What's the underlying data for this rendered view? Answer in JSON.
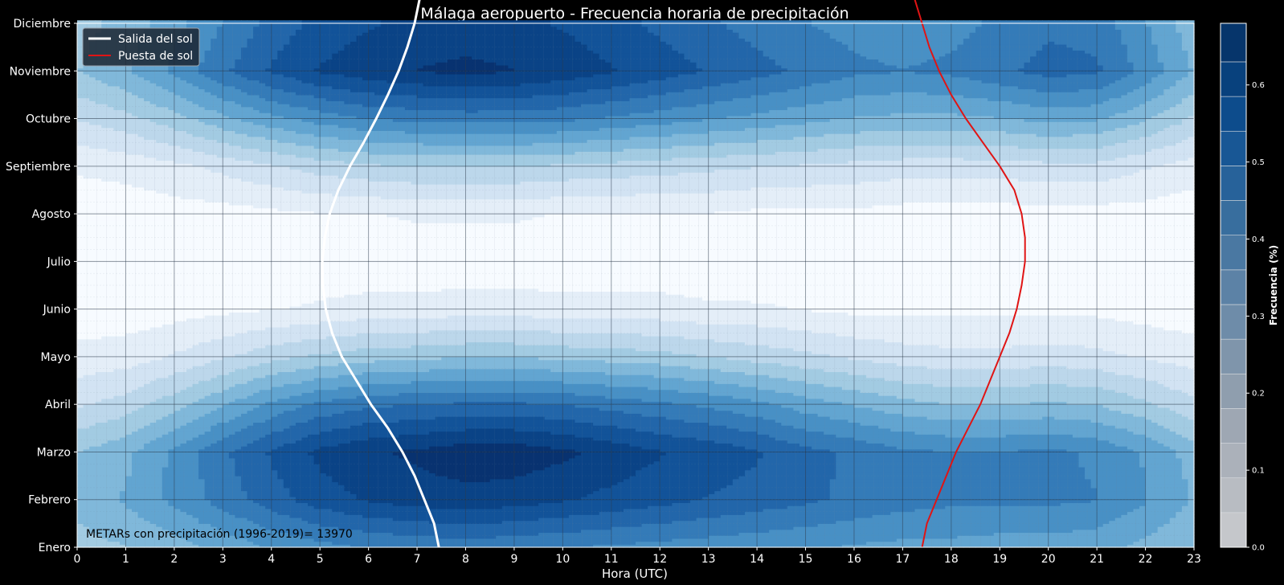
{
  "chart_data": {
    "type": "heatmap",
    "title": "Málaga aeropuerto - Frecuencia horaria de precipitación",
    "xlabel": "Hora (UTC)",
    "ylabel": "",
    "x_ticks": [
      "0",
      "1",
      "2",
      "3",
      "4",
      "5",
      "6",
      "7",
      "8",
      "9",
      "10",
      "11",
      "12",
      "13",
      "14",
      "15",
      "16",
      "17",
      "18",
      "19",
      "20",
      "21",
      "22",
      "23"
    ],
    "xlim": [
      0,
      23
    ],
    "months": [
      "Enero",
      "Febrero",
      "Marzo",
      "Abril",
      "Mayo",
      "Junio",
      "Julio",
      "Agosto",
      "Septiembre",
      "Octubre",
      "Noviembre",
      "Diciembre"
    ],
    "grid": true,
    "colorbar": {
      "label": "Frecuencia  (%)",
      "ticks": [
        "0.0",
        "0.1",
        "0.2",
        "0.3",
        "0.4",
        "0.5",
        "0.6"
      ],
      "range": [
        0,
        0.68
      ],
      "levels": [
        0,
        0.045,
        0.09,
        0.135,
        0.18,
        0.225,
        0.27,
        0.315,
        0.36,
        0.405,
        0.45,
        0.495,
        0.54,
        0.585,
        0.63,
        0.68
      ],
      "colors": [
        "#c5c7cb",
        "#b8bcc2",
        "#abb1ba",
        "#9ea7b3",
        "#8f9eae",
        "#7f95ab",
        "#6e8ca9",
        "#5c82a6",
        "#4a78a2",
        "#386e9e",
        "#27629a",
        "#185795",
        "#0d4c8c",
        "#08417d",
        "#06356b",
        "#052a5a"
      ]
    },
    "heatmap_colors": [
      "#f7fbff",
      "#e4eef8",
      "#d2e3f3",
      "#bcd7eb",
      "#a2cbe2",
      "#80b8da",
      "#62a5d1",
      "#4890c5",
      "#347bb8",
      "#2266aa",
      "#125399",
      "#0a4386",
      "#083270"
    ],
    "frequency_grid": {
      "hours": [
        0,
        1,
        2,
        3,
        4,
        5,
        6,
        7,
        8,
        9,
        10,
        11,
        12,
        13,
        14,
        15,
        16,
        17,
        18,
        19,
        20,
        21,
        22,
        23
      ],
      "months": [
        "Enero",
        "Febrero",
        "Marzo",
        "Abril",
        "Mayo",
        "Junio",
        "Julio",
        "Agosto",
        "Septiembre",
        "Octubre",
        "Noviembre",
        "Diciembre"
      ],
      "values": [
        [
          0.24,
          0.26,
          0.29,
          0.33,
          0.37,
          0.4,
          0.42,
          0.43,
          0.44,
          0.43,
          0.42,
          0.41,
          0.4,
          0.39,
          0.38,
          0.37,
          0.36,
          0.35,
          0.35,
          0.34,
          0.34,
          0.33,
          0.3,
          0.26
        ],
        [
          0.28,
          0.32,
          0.38,
          0.44,
          0.5,
          0.55,
          0.58,
          0.6,
          0.61,
          0.6,
          0.58,
          0.56,
          0.54,
          0.52,
          0.5,
          0.48,
          0.46,
          0.44,
          0.43,
          0.43,
          0.43,
          0.42,
          0.37,
          0.31
        ],
        [
          0.26,
          0.3,
          0.38,
          0.46,
          0.53,
          0.59,
          0.62,
          0.64,
          0.66,
          0.66,
          0.64,
          0.61,
          0.58,
          0.56,
          0.53,
          0.49,
          0.46,
          0.43,
          0.42,
          0.42,
          0.43,
          0.41,
          0.36,
          0.29
        ],
        [
          0.15,
          0.18,
          0.24,
          0.31,
          0.38,
          0.43,
          0.46,
          0.47,
          0.48,
          0.48,
          0.47,
          0.45,
          0.43,
          0.41,
          0.38,
          0.34,
          0.31,
          0.28,
          0.26,
          0.26,
          0.27,
          0.26,
          0.22,
          0.17
        ],
        [
          0.07,
          0.08,
          0.11,
          0.15,
          0.19,
          0.22,
          0.24,
          0.25,
          0.26,
          0.26,
          0.25,
          0.24,
          0.23,
          0.21,
          0.19,
          0.17,
          0.15,
          0.13,
          0.12,
          0.12,
          0.13,
          0.12,
          0.1,
          0.08
        ],
        [
          0.02,
          0.02,
          0.03,
          0.04,
          0.05,
          0.06,
          0.07,
          0.07,
          0.08,
          0.08,
          0.07,
          0.07,
          0.07,
          0.06,
          0.06,
          0.05,
          0.04,
          0.04,
          0.04,
          0.04,
          0.04,
          0.04,
          0.03,
          0.02
        ],
        [
          0.01,
          0.01,
          0.01,
          0.01,
          0.01,
          0.02,
          0.02,
          0.02,
          0.02,
          0.02,
          0.02,
          0.02,
          0.02,
          0.02,
          0.01,
          0.01,
          0.01,
          0.01,
          0.01,
          0.01,
          0.01,
          0.01,
          0.01,
          0.01
        ],
        [
          0.02,
          0.02,
          0.03,
          0.03,
          0.04,
          0.05,
          0.05,
          0.06,
          0.06,
          0.06,
          0.05,
          0.05,
          0.05,
          0.05,
          0.04,
          0.04,
          0.04,
          0.03,
          0.03,
          0.03,
          0.03,
          0.03,
          0.03,
          0.02
        ],
        [
          0.06,
          0.07,
          0.09,
          0.12,
          0.15,
          0.18,
          0.2,
          0.21,
          0.21,
          0.21,
          0.2,
          0.19,
          0.18,
          0.17,
          0.16,
          0.15,
          0.14,
          0.13,
          0.13,
          0.13,
          0.14,
          0.14,
          0.11,
          0.08
        ],
        [
          0.16,
          0.19,
          0.24,
          0.3,
          0.35,
          0.39,
          0.42,
          0.43,
          0.44,
          0.44,
          0.43,
          0.41,
          0.39,
          0.37,
          0.35,
          0.33,
          0.31,
          0.3,
          0.3,
          0.31,
          0.33,
          0.32,
          0.27,
          0.2
        ],
        [
          0.26,
          0.31,
          0.38,
          0.46,
          0.53,
          0.58,
          0.61,
          0.63,
          0.64,
          0.63,
          0.61,
          0.58,
          0.55,
          0.52,
          0.49,
          0.46,
          0.43,
          0.42,
          0.43,
          0.46,
          0.49,
          0.48,
          0.4,
          0.31
        ],
        [
          0.24,
          0.28,
          0.35,
          0.42,
          0.49,
          0.54,
          0.57,
          0.59,
          0.6,
          0.59,
          0.57,
          0.54,
          0.51,
          0.48,
          0.45,
          0.42,
          0.4,
          0.39,
          0.4,
          0.43,
          0.46,
          0.45,
          0.37,
          0.28
        ]
      ]
    },
    "series": [
      {
        "name": "Salida del sol",
        "color": "#ffffff",
        "month_values": [
          0,
          0.5,
          1,
          1.5,
          2,
          2.5,
          3,
          3.5,
          4,
          4.5,
          5,
          5.5,
          6,
          6.5,
          7,
          7.5,
          8,
          8.5,
          9,
          9.5,
          10,
          10.5,
          11,
          11.5,
          12
        ],
        "hours": [
          7.45,
          7.35,
          7.15,
          6.95,
          6.7,
          6.4,
          6.05,
          5.75,
          5.45,
          5.25,
          5.12,
          5.06,
          5.05,
          5.1,
          5.2,
          5.38,
          5.62,
          5.9,
          6.16,
          6.4,
          6.62,
          6.8,
          6.95,
          7.05,
          7.1
        ]
      },
      {
        "name": "Puesta de sol",
        "color": "#e01414",
        "month_values": [
          0,
          0.5,
          1,
          1.5,
          2,
          2.5,
          3,
          3.5,
          4,
          4.5,
          5,
          5.5,
          6,
          6.5,
          7,
          7.5,
          8,
          8.5,
          9,
          9.5,
          10,
          10.5,
          11,
          11.5,
          12
        ],
        "hours": [
          17.4,
          17.5,
          17.7,
          17.9,
          18.1,
          18.35,
          18.6,
          18.8,
          19.0,
          19.2,
          19.35,
          19.45,
          19.52,
          19.52,
          19.45,
          19.3,
          19.0,
          18.65,
          18.3,
          18.0,
          17.75,
          17.55,
          17.4,
          17.25,
          17.15
        ]
      }
    ],
    "legend": {
      "placement": "top-left"
    },
    "annotation": "METARs con precipitación (1996-2019)= 13970"
  }
}
